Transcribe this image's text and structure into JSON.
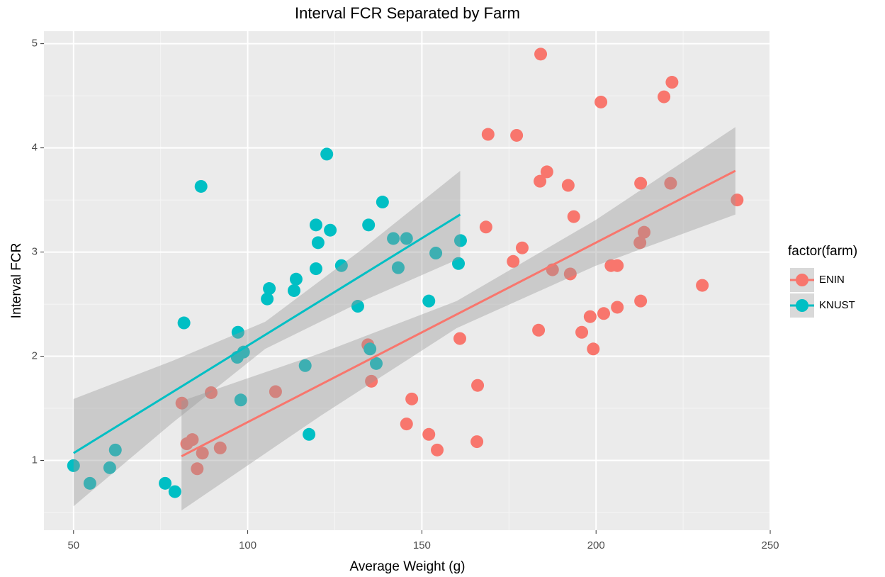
{
  "chart_data": {
    "type": "scatter",
    "title": "Interval FCR Separated by Farm",
    "x_label": "Average Weight (g)",
    "y_label": "Interval FCR",
    "legend_title": "factor(farm)",
    "xlim": [
      41.5,
      250.2
    ],
    "ylim": [
      0.33,
      5.12
    ],
    "xticks": [
      50,
      100,
      150,
      200,
      250
    ],
    "yticks": [
      1,
      2,
      3,
      4,
      5
    ],
    "xminor": [
      75,
      125,
      175,
      225
    ],
    "yminor": [
      0.5,
      1.5,
      2.5,
      3.5,
      4.5
    ],
    "grid": true,
    "legend": "right",
    "series": [
      {
        "name": "ENIN",
        "color": "#F8766D",
        "x": [
          81.1,
          82.5,
          84.1,
          85.5,
          87,
          89.5,
          92.1,
          108,
          134.5,
          135.5,
          145.6,
          147.1,
          152,
          154.4,
          160.9,
          165.8,
          166,
          168.4,
          169,
          176.2,
          177.2,
          178.8,
          183.5,
          183.9,
          184.1,
          185.9,
          187.5,
          192,
          192.6,
          193.6,
          195.9,
          198.3,
          199.2,
          201.4,
          202.2,
          204.3,
          206.1,
          206.1,
          212.6,
          212.8,
          212.8,
          213.8,
          219.5,
          221.4,
          221.8,
          230.5,
          240.5
        ],
        "y": [
          1.55,
          1.16,
          1.2,
          0.92,
          1.07,
          1.65,
          1.12,
          1.66,
          2.11,
          1.76,
          1.35,
          1.59,
          1.25,
          1.1,
          2.17,
          1.18,
          1.72,
          3.24,
          4.13,
          2.91,
          4.12,
          3.04,
          2.25,
          3.68,
          4.9,
          3.77,
          2.83,
          3.64,
          2.79,
          3.34,
          2.23,
          2.38,
          2.07,
          4.44,
          2.41,
          2.87,
          2.87,
          2.47,
          3.09,
          3.66,
          2.53,
          3.19,
          4.49,
          3.66,
          4.63,
          2.68,
          3.5
        ],
        "fit": {
          "x": [
            81,
            240
          ],
          "y": [
            1.04,
            3.78
          ]
        },
        "band": {
          "x": [
            81,
            121,
            160,
            200,
            240
          ],
          "lower": [
            0.52,
            1.43,
            2.27,
            2.87,
            3.36
          ],
          "upper": [
            1.57,
            2.03,
            2.53,
            3.31,
            4.2
          ]
        }
      },
      {
        "name": "KNUST",
        "color": "#00BFC4",
        "x": [
          50,
          54.7,
          60.4,
          62,
          76.3,
          79.1,
          81.7,
          86.6,
          97.2,
          97,
          98,
          98.8,
          105.6,
          106.2,
          113.3,
          113.9,
          116.5,
          117.6,
          119.6,
          119.6,
          120.2,
          122.7,
          123.7,
          126.9,
          131.6,
          134.7,
          135.1,
          136.9,
          138.7,
          141.8,
          143.2,
          145.6,
          152,
          154,
          160.5,
          161.1
        ],
        "y": [
          0.95,
          0.78,
          0.93,
          1.1,
          0.78,
          0.7,
          2.32,
          3.63,
          2.23,
          1.99,
          1.58,
          2.04,
          2.55,
          2.65,
          2.63,
          2.74,
          1.91,
          1.25,
          2.84,
          3.26,
          3.09,
          3.94,
          3.21,
          2.87,
          2.48,
          3.26,
          2.07,
          1.93,
          3.48,
          3.13,
          2.85,
          3.13,
          2.53,
          2.99,
          2.89,
          3.11
        ],
        "fit": {
          "x": [
            50,
            161
          ],
          "y": [
            1.07,
            3.36
          ]
        },
        "band": {
          "x": [
            50,
            78,
            105,
            133,
            161
          ],
          "lower": [
            0.56,
            1.35,
            2.07,
            2.53,
            2.94
          ],
          "upper": [
            1.59,
            1.95,
            2.33,
            3.03,
            3.78
          ]
        }
      }
    ]
  }
}
